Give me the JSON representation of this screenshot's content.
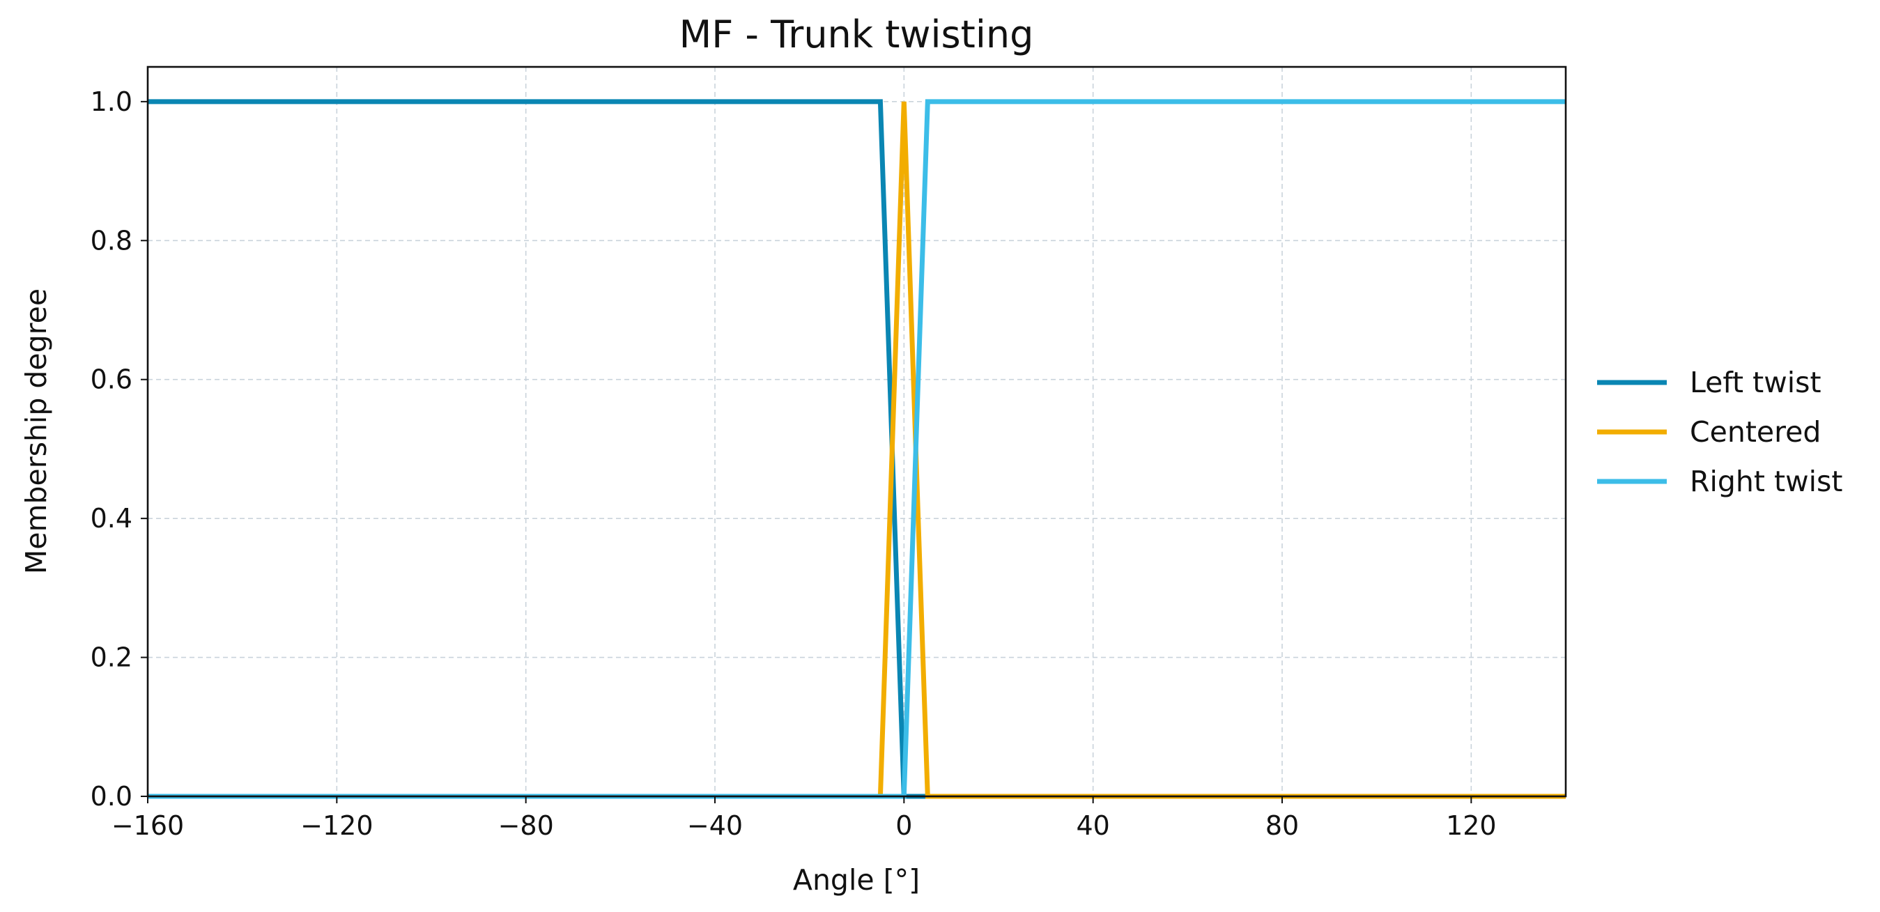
{
  "chart_data": {
    "type": "line",
    "title": "MF - Trunk twisting",
    "xlabel": "Angle [°]",
    "ylabel": "Membership degree",
    "xlim": [
      -160,
      140
    ],
    "ylim": [
      0,
      1.05
    ],
    "xticks": [
      -160,
      -120,
      -80,
      -40,
      0,
      40,
      80,
      120
    ],
    "xtick_labels": [
      "−160",
      "−120",
      "−80",
      "−40",
      "0",
      "40",
      "80",
      "120"
    ],
    "yticks": [
      0.0,
      0.2,
      0.4,
      0.6,
      0.8,
      1.0
    ],
    "ytick_labels": [
      "0.0",
      "0.2",
      "0.4",
      "0.6",
      "0.8",
      "1.0"
    ],
    "grid": true,
    "legend_position": "outside-right",
    "series": [
      {
        "name": "Left twist",
        "color": "#0a86b3",
        "x": [
          -160,
          -5,
          0,
          140
        ],
        "y": [
          1,
          1,
          0,
          0
        ]
      },
      {
        "name": "Centered",
        "color": "#f2ad00",
        "x": [
          -160,
          -5,
          0,
          5,
          140
        ],
        "y": [
          0,
          0,
          1,
          0,
          0
        ]
      },
      {
        "name": "Right twist",
        "color": "#3cbde8",
        "x": [
          -160,
          0,
          5,
          140
        ],
        "y": [
          0,
          0,
          1,
          1
        ]
      }
    ]
  }
}
